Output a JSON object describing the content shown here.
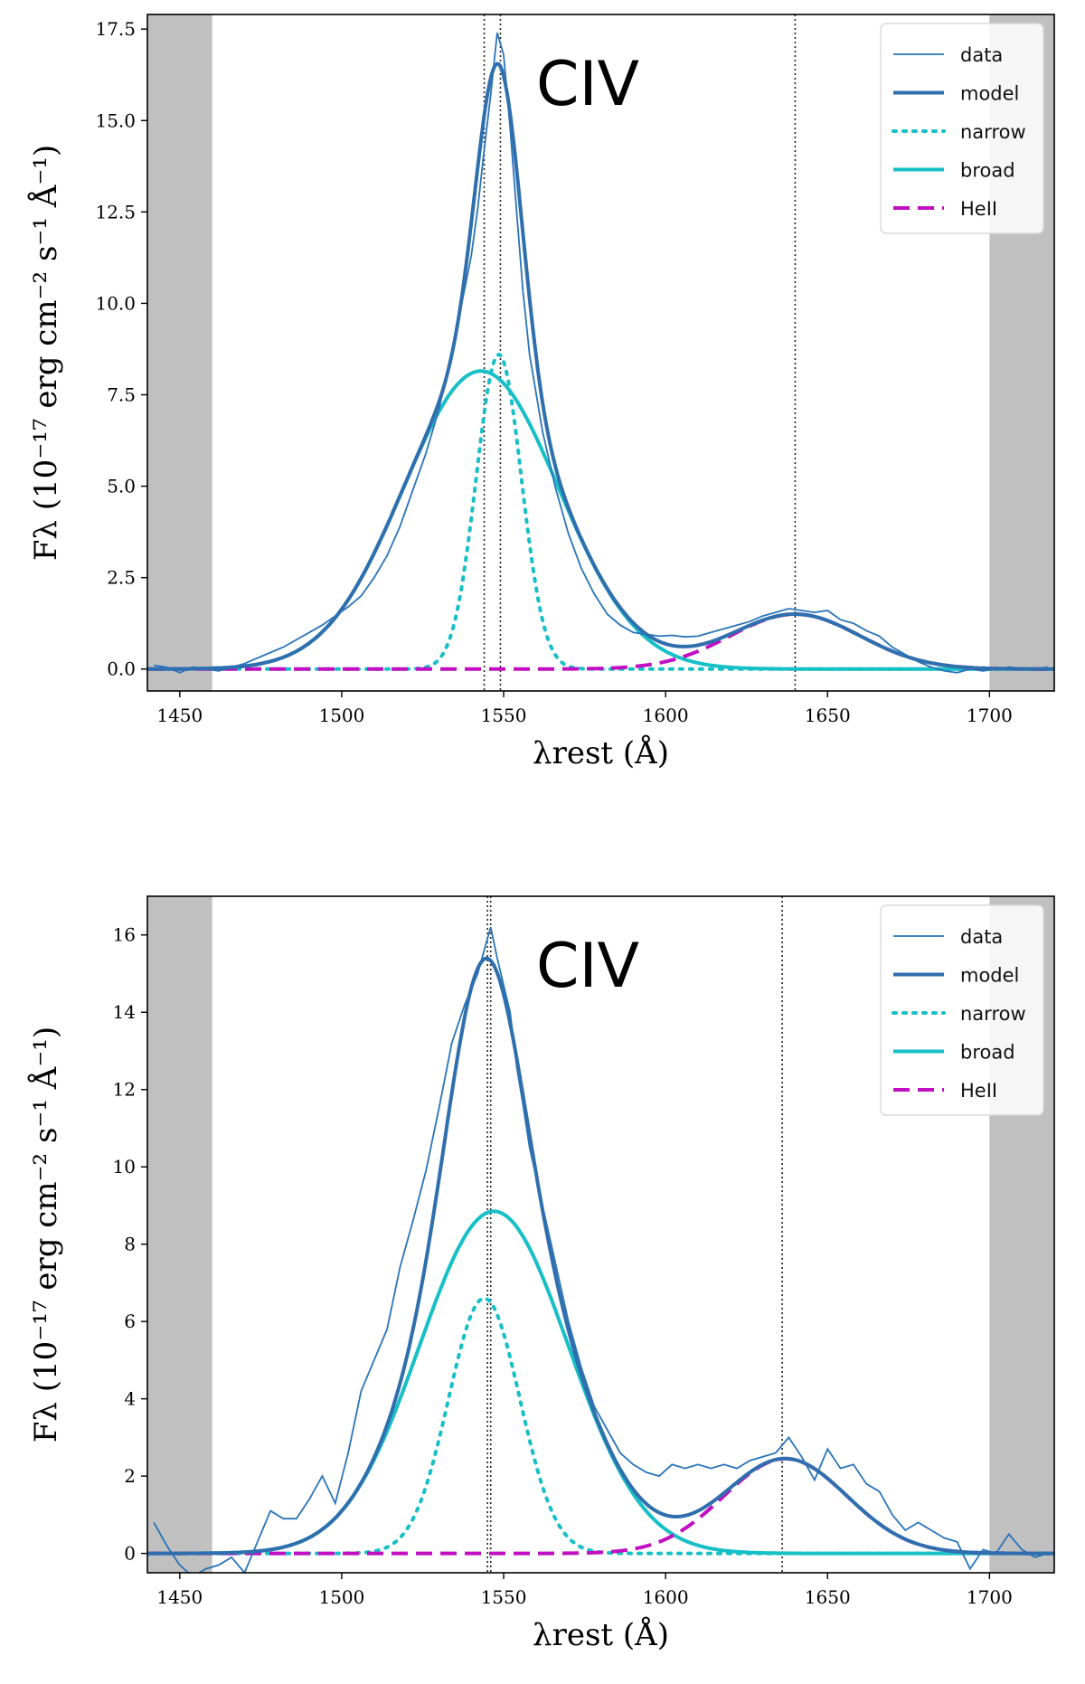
{
  "chart_data": [
    {
      "type": "line",
      "panel": "top",
      "title": "",
      "annotation": "CIV",
      "xlabel": "λrest (Å)",
      "ylabel": "Fλ (10⁻¹⁷ erg cm⁻² s⁻¹ Å⁻¹)",
      "xlim": [
        1440,
        1720
      ],
      "ylim": [
        -0.6,
        17.9
      ],
      "xticks": [
        1450,
        1500,
        1550,
        1600,
        1650,
        1700
      ],
      "yticks": [
        0.0,
        2.5,
        5.0,
        7.5,
        10.0,
        12.5,
        15.0,
        17.5
      ],
      "ytick_labels": [
        "0.0",
        "2.5",
        "5.0",
        "7.5",
        "10.0",
        "12.5",
        "15.0",
        "17.5"
      ],
      "shaded_regions": [
        [
          1440,
          1460
        ],
        [
          1700,
          1720
        ]
      ],
      "vlines": [
        1544,
        1549,
        1640
      ],
      "legend_position": "top-right",
      "legend": [
        "data",
        "model",
        "narrow",
        "broad",
        "HeII"
      ],
      "components": {
        "narrow": {
          "amp": 8.6,
          "center": 1548.5,
          "sigma": 7.0
        },
        "broad": {
          "amp": 8.15,
          "center": 1543,
          "sigma": 24
        },
        "heii": {
          "amp": 1.5,
          "center": 1640,
          "sigma": 20
        }
      },
      "data": {
        "x": [
          1442,
          1446,
          1450,
          1454,
          1458,
          1462,
          1466,
          1470,
          1474,
          1478,
          1482,
          1486,
          1490,
          1494,
          1498,
          1502,
          1506,
          1510,
          1514,
          1518,
          1522,
          1526,
          1530,
          1534,
          1538,
          1540,
          1542,
          1544,
          1546,
          1548,
          1550,
          1552,
          1554,
          1556,
          1558,
          1562,
          1566,
          1570,
          1574,
          1578,
          1582,
          1586,
          1590,
          1594,
          1598,
          1602,
          1606,
          1610,
          1614,
          1618,
          1622,
          1626,
          1630,
          1634,
          1638,
          1642,
          1646,
          1650,
          1654,
          1658,
          1662,
          1666,
          1670,
          1674,
          1678,
          1682,
          1686,
          1690,
          1694,
          1698,
          1702,
          1706,
          1710,
          1714,
          1718
        ],
        "y": [
          0.1,
          0.05,
          -0.1,
          0.05,
          0.0,
          -0.05,
          0.05,
          0.15,
          0.3,
          0.45,
          0.6,
          0.8,
          1.0,
          1.2,
          1.45,
          1.7,
          2.0,
          2.5,
          3.1,
          3.9,
          4.9,
          5.9,
          7.1,
          8.7,
          10.4,
          11.3,
          12.6,
          14.2,
          15.7,
          17.4,
          16.8,
          14.8,
          12.5,
          10.3,
          8.6,
          6.5,
          4.95,
          3.7,
          2.75,
          2.05,
          1.5,
          1.2,
          1.0,
          0.95,
          0.9,
          0.92,
          0.88,
          0.9,
          1.0,
          1.1,
          1.2,
          1.3,
          1.45,
          1.55,
          1.65,
          1.6,
          1.55,
          1.6,
          1.35,
          1.25,
          1.05,
          0.9,
          0.6,
          0.4,
          0.2,
          0.05,
          -0.05,
          -0.1,
          0.0,
          -0.05,
          0.0,
          0.05,
          0.02,
          0.0,
          0.05
        ]
      }
    },
    {
      "type": "line",
      "panel": "bottom",
      "title": "",
      "annotation": "CIV",
      "xlabel": "λrest (Å)",
      "ylabel": "Fλ (10⁻¹⁷ erg cm⁻² s⁻¹ Å⁻¹)",
      "xlim": [
        1440,
        1720
      ],
      "ylim": [
        -0.5,
        17.0
      ],
      "xticks": [
        1450,
        1500,
        1550,
        1600,
        1650,
        1700
      ],
      "yticks": [
        0,
        2,
        4,
        6,
        8,
        10,
        12,
        14,
        16
      ],
      "ytick_labels": [
        "0",
        "2",
        "4",
        "6",
        "8",
        "10",
        "12",
        "14",
        "16"
      ],
      "shaded_regions": [
        [
          1440,
          1460
        ],
        [
          1700,
          1720
        ]
      ],
      "vlines": [
        1545,
        1546,
        1636
      ],
      "legend_position": "top-right",
      "legend": [
        "data",
        "model",
        "narrow",
        "broad",
        "HeII"
      ],
      "components": {
        "narrow": {
          "amp": 6.6,
          "center": 1544,
          "sigma": 11
        },
        "broad": {
          "amp": 8.85,
          "center": 1547,
          "sigma": 23
        },
        "heii": {
          "amp": 2.45,
          "center": 1637,
          "sigma": 19
        }
      },
      "data": {
        "x": [
          1442,
          1446,
          1450,
          1454,
          1458,
          1462,
          1466,
          1470,
          1474,
          1478,
          1482,
          1486,
          1490,
          1494,
          1498,
          1502,
          1506,
          1510,
          1514,
          1518,
          1522,
          1526,
          1530,
          1534,
          1538,
          1540,
          1542,
          1544,
          1546,
          1548,
          1550,
          1552,
          1554,
          1556,
          1558,
          1562,
          1566,
          1570,
          1574,
          1578,
          1582,
          1586,
          1590,
          1594,
          1598,
          1602,
          1606,
          1610,
          1614,
          1618,
          1622,
          1626,
          1630,
          1634,
          1638,
          1642,
          1646,
          1650,
          1654,
          1658,
          1662,
          1666,
          1670,
          1674,
          1678,
          1682,
          1686,
          1690,
          1694,
          1698,
          1702,
          1706,
          1710,
          1714,
          1718
        ],
        "y": [
          0.8,
          0.2,
          -0.3,
          -0.6,
          -0.4,
          -0.3,
          -0.1,
          -0.5,
          0.3,
          1.1,
          0.9,
          0.9,
          1.4,
          2.0,
          1.3,
          2.6,
          4.2,
          5.0,
          5.8,
          7.4,
          8.6,
          9.9,
          11.5,
          13.2,
          14.2,
          14.6,
          15.0,
          15.6,
          16.2,
          15.4,
          14.7,
          14.0,
          12.6,
          11.6,
          10.5,
          9.0,
          7.5,
          6.0,
          4.8,
          3.8,
          3.2,
          2.6,
          2.3,
          2.1,
          2.0,
          2.3,
          2.2,
          2.3,
          2.2,
          2.3,
          2.2,
          2.4,
          2.5,
          2.6,
          3.0,
          2.5,
          1.9,
          2.7,
          2.2,
          2.3,
          1.8,
          1.6,
          1.0,
          0.6,
          0.8,
          0.6,
          0.4,
          0.3,
          -0.4,
          0.1,
          0.0,
          0.5,
          0.1,
          -0.1,
          0.0
        ]
      }
    }
  ]
}
